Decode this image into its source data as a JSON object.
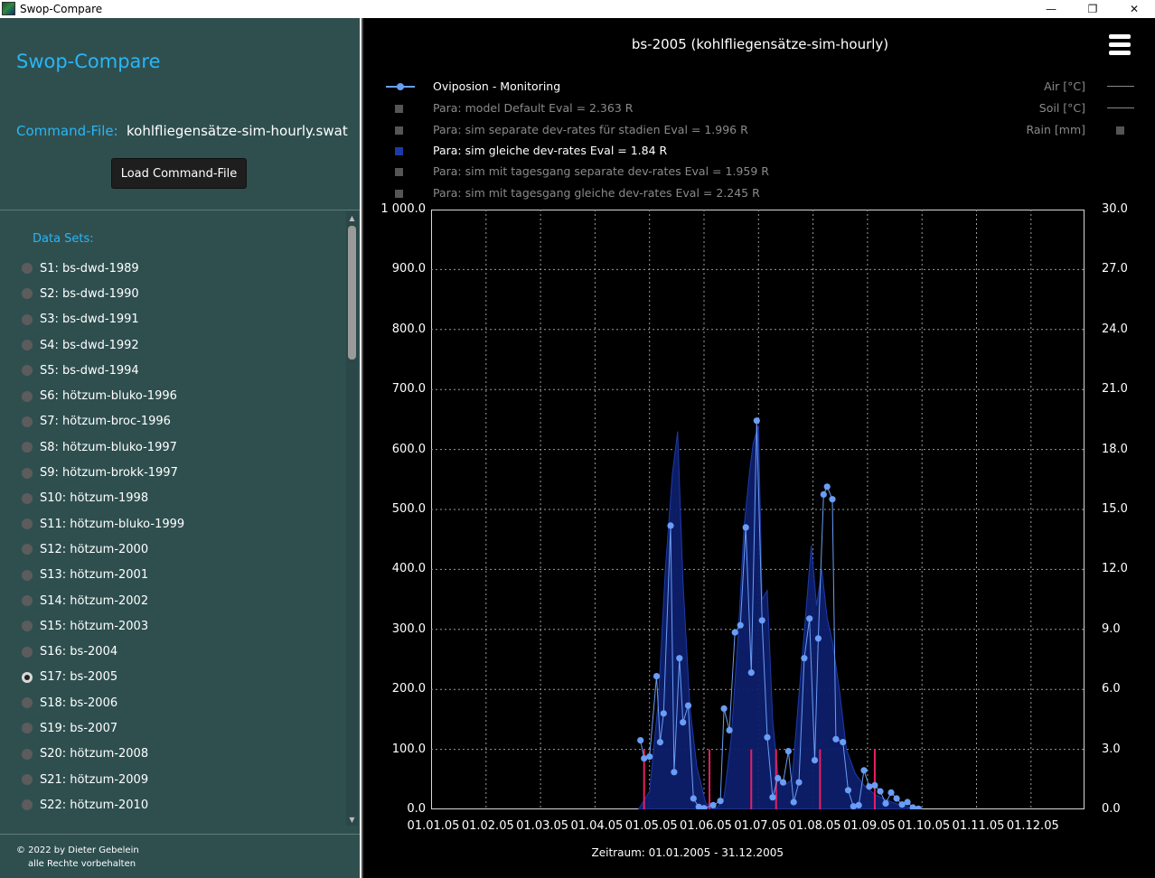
{
  "window": {
    "title": "Swop-Compare",
    "minimize_glyph": "—",
    "maximize_glyph": "❐",
    "close_glyph": "✕"
  },
  "sidebar": {
    "app_heading": "Swop-Compare",
    "command_file_label": "Command-File:",
    "command_file_value": "kohlfliegensätze-sim-hourly.swat",
    "load_button_label": "Load Command-File",
    "datasets_label": "Data Sets:",
    "datasets": [
      {
        "label": "S1: bs-dwd-1989",
        "selected": false
      },
      {
        "label": "S2: bs-dwd-1990",
        "selected": false
      },
      {
        "label": "S3: bs-dwd-1991",
        "selected": false
      },
      {
        "label": "S4: bs-dwd-1992",
        "selected": false
      },
      {
        "label": "S5: bs-dwd-1994",
        "selected": false
      },
      {
        "label": "S6: hötzum-bluko-1996",
        "selected": false
      },
      {
        "label": "S7: hötzum-broc-1996",
        "selected": false
      },
      {
        "label": "S8: hötzum-bluko-1997",
        "selected": false
      },
      {
        "label": "S9: hötzum-brokk-1997",
        "selected": false
      },
      {
        "label": "S10: hötzum-1998",
        "selected": false
      },
      {
        "label": "S11: hötzum-bluko-1999",
        "selected": false
      },
      {
        "label": "S12: hötzum-2000",
        "selected": false
      },
      {
        "label": "S13: hötzum-2001",
        "selected": false
      },
      {
        "label": "S14: hötzum-2002",
        "selected": false
      },
      {
        "label": "S15: hötzum-2003",
        "selected": false
      },
      {
        "label": "S16: bs-2004",
        "selected": false
      },
      {
        "label": "S17: bs-2005",
        "selected": true
      },
      {
        "label": "S18: bs-2006",
        "selected": false
      },
      {
        "label": "S19: bs-2007",
        "selected": false
      },
      {
        "label": "S20: hötzum-2008",
        "selected": false
      },
      {
        "label": "S21: hötzum-2009",
        "selected": false
      },
      {
        "label": "S22: hötzum-2010",
        "selected": false
      }
    ],
    "footer_line1": "© 2022 by Dieter Gebelein",
    "footer_line2": "alle Rechte vorbehalten"
  },
  "chart": {
    "title": "bs-2005  (kohlfliegensätze-sim-hourly)",
    "legend": [
      {
        "label": "Oviposion - Monitoring",
        "active": true,
        "marker": "line-dot",
        "color": "#6a9df5"
      },
      {
        "label": "Para: model Default   Eval = 2.363 R",
        "active": false,
        "marker": "box",
        "color": "#555555"
      },
      {
        "label": "Para: sim  separate dev-rates für stadien  Eval = 1.996 R",
        "active": false,
        "marker": "box",
        "color": "#555555"
      },
      {
        "label": "Para: sim  gleiche dev-rates  Eval = 1.84 R",
        "active": true,
        "marker": "box",
        "color": "#1c3aa8"
      },
      {
        "label": "Para: sim mit tagesgang separate dev-rates  Eval = 1.959 R",
        "active": false,
        "marker": "box",
        "color": "#555555"
      },
      {
        "label": "Para: sim mit tagesgang gleiche dev-rates  Eval = 2.245 R",
        "active": false,
        "marker": "box",
        "color": "#555555"
      }
    ],
    "legend_right": [
      {
        "label": "Air [°C]",
        "marker": "line"
      },
      {
        "label": "Soil [°C]",
        "marker": "line"
      },
      {
        "label": "Rain [mm]",
        "marker": "box"
      }
    ],
    "x_caption": "Zeitraum: 01.01.2005 - 31.12.2005"
  },
  "chart_data": {
    "type": "line",
    "title": "bs-2005  (kohlfliegensätze-sim-hourly)",
    "xlabel": "Zeitraum: 01.01.2005 - 31.12.2005",
    "x_ticks": [
      "01.01.05",
      "01.02.05",
      "01.03.05",
      "01.04.05",
      "01.05.05",
      "01.06.05",
      "01.07.05",
      "01.08.05",
      "01.09.05",
      "01.10.05",
      "01.11.05",
      "01.12.05"
    ],
    "y_left_ticks": [
      "0.0",
      "100.0",
      "200.0",
      "300.0",
      "400.0",
      "500.0",
      "600.0",
      "700.0",
      "800.0",
      "900.0",
      "1 000.0"
    ],
    "y_right_ticks": [
      "0.0",
      "3.0",
      "6.0",
      "9.0",
      "12.0",
      "15.0",
      "18.0",
      "21.0",
      "24.0",
      "27.0",
      "30.0"
    ],
    "ylim_left": [
      0,
      1000
    ],
    "ylim_right": [
      0,
      30
    ],
    "grid": true,
    "series": [
      {
        "name": "Oviposion - Monitoring",
        "kind": "line-markers",
        "color": "#6a9df5",
        "points": [
          [
            "2005-04-26",
            115
          ],
          [
            "2005-04-28",
            85
          ],
          [
            "2005-05-01",
            88
          ],
          [
            "2005-05-05",
            222
          ],
          [
            "2005-05-07",
            112
          ],
          [
            "2005-05-09",
            160
          ],
          [
            "2005-05-13",
            473
          ],
          [
            "2005-05-15",
            62
          ],
          [
            "2005-05-18",
            252
          ],
          [
            "2005-05-20",
            145
          ],
          [
            "2005-05-23",
            173
          ],
          [
            "2005-05-26",
            18
          ],
          [
            "2005-05-29",
            4
          ],
          [
            "2005-06-01",
            2
          ],
          [
            "2005-06-06",
            7
          ],
          [
            "2005-06-10",
            14
          ],
          [
            "2005-06-12",
            168
          ],
          [
            "2005-06-15",
            132
          ],
          [
            "2005-06-18",
            295
          ],
          [
            "2005-06-21",
            307
          ],
          [
            "2005-06-24",
            470
          ],
          [
            "2005-06-27",
            228
          ],
          [
            "2005-06-30",
            648
          ],
          [
            "2005-07-03",
            315
          ],
          [
            "2005-07-06",
            120
          ],
          [
            "2005-07-09",
            20
          ],
          [
            "2005-07-12",
            52
          ],
          [
            "2005-07-15",
            45
          ],
          [
            "2005-07-18",
            97
          ],
          [
            "2005-07-21",
            12
          ],
          [
            "2005-07-24",
            45
          ],
          [
            "2005-07-27",
            252
          ],
          [
            "2005-07-30",
            318
          ],
          [
            "2005-08-02",
            82
          ],
          [
            "2005-08-04",
            285
          ],
          [
            "2005-08-07",
            525
          ],
          [
            "2005-08-09",
            538
          ],
          [
            "2005-08-12",
            517
          ],
          [
            "2005-08-14",
            117
          ],
          [
            "2005-08-18",
            112
          ],
          [
            "2005-08-21",
            32
          ],
          [
            "2005-08-24",
            5
          ],
          [
            "2005-08-27",
            7
          ],
          [
            "2005-08-30",
            65
          ],
          [
            "2005-09-02",
            38
          ],
          [
            "2005-09-05",
            40
          ],
          [
            "2005-09-08",
            30
          ],
          [
            "2005-09-11",
            10
          ],
          [
            "2005-09-14",
            28
          ],
          [
            "2005-09-17",
            18
          ],
          [
            "2005-09-20",
            8
          ],
          [
            "2005-09-23",
            12
          ],
          [
            "2005-09-26",
            3
          ],
          [
            "2005-09-29",
            1
          ]
        ]
      },
      {
        "name": "Para: sim  gleiche dev-rates  Eval = 1.84 R",
        "kind": "area",
        "color": "#1c3aa8",
        "points": [
          [
            "2005-04-25",
            0
          ],
          [
            "2005-05-01",
            30
          ],
          [
            "2005-05-06",
            180
          ],
          [
            "2005-05-10",
            400
          ],
          [
            "2005-05-14",
            560
          ],
          [
            "2005-05-17",
            630
          ],
          [
            "2005-05-20",
            380
          ],
          [
            "2005-05-24",
            170
          ],
          [
            "2005-05-28",
            70
          ],
          [
            "2005-06-02",
            10
          ],
          [
            "2005-06-08",
            2
          ],
          [
            "2005-06-12",
            20
          ],
          [
            "2005-06-16",
            120
          ],
          [
            "2005-06-20",
            300
          ],
          [
            "2005-06-23",
            470
          ],
          [
            "2005-06-26",
            560
          ],
          [
            "2005-06-28",
            610
          ],
          [
            "2005-07-01",
            640
          ],
          [
            "2005-07-03",
            350
          ],
          [
            "2005-07-06",
            365
          ],
          [
            "2005-07-09",
            150
          ],
          [
            "2005-07-12",
            60
          ],
          [
            "2005-07-16",
            40
          ],
          [
            "2005-07-20",
            50
          ],
          [
            "2005-07-24",
            190
          ],
          [
            "2005-07-28",
            330
          ],
          [
            "2005-07-31",
            440
          ],
          [
            "2005-08-03",
            340
          ],
          [
            "2005-08-06",
            400
          ],
          [
            "2005-08-09",
            320
          ],
          [
            "2005-08-12",
            280
          ],
          [
            "2005-08-16",
            200
          ],
          [
            "2005-08-20",
            100
          ],
          [
            "2005-08-25",
            60
          ],
          [
            "2005-08-30",
            40
          ],
          [
            "2005-09-05",
            25
          ],
          [
            "2005-09-12",
            15
          ],
          [
            "2005-09-20",
            6
          ],
          [
            "2005-09-29",
            0
          ]
        ]
      },
      {
        "name": "Rain [mm]",
        "kind": "bars",
        "axis": "right",
        "color": "#e91e63",
        "points": [
          [
            "2005-04-28",
            3.0
          ],
          [
            "2005-06-04",
            3.0
          ],
          [
            "2005-06-27",
            3.0
          ],
          [
            "2005-07-11",
            3.0
          ],
          [
            "2005-08-05",
            3.0
          ],
          [
            "2005-09-05",
            3.0
          ]
        ]
      }
    ]
  }
}
